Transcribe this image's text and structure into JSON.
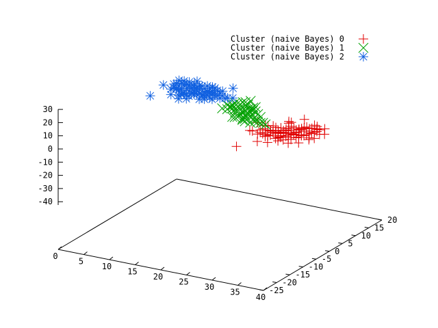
{
  "chart_data": {
    "type": "scatter",
    "projection": "3d",
    "title": "",
    "xlabel": "",
    "ylabel": "",
    "zlabel": "",
    "x_ticks": [
      "0",
      "5",
      "10",
      "15",
      "20",
      "25",
      "30",
      "35",
      "40"
    ],
    "y_ticks": [
      "-25",
      "-20",
      "-15",
      "-10",
      "-5",
      "0",
      "5",
      "10",
      "15",
      "20"
    ],
    "z_ticks": [
      "30",
      "20",
      "10",
      "0",
      "-10",
      "-20",
      "-30",
      "-40"
    ],
    "xlim": [
      0,
      40
    ],
    "ylim": [
      -25,
      20
    ],
    "zlim": [
      -40,
      30
    ],
    "grid": false,
    "legend_position": "top-right",
    "series": [
      {
        "name": "Cluster (naive Bayes) 0",
        "marker": "plus",
        "color": "#e00000",
        "points": [
          [
            24,
            2,
            0.24
          ],
          [
            25,
            2,
            -1.3
          ],
          [
            25,
            3,
            -1.2
          ],
          [
            25,
            4,
            0.29
          ],
          [
            25,
            5,
            1.6
          ],
          [
            25,
            6,
            0.38
          ],
          [
            26,
            2,
            -0.26
          ],
          [
            26,
            3,
            -0.37
          ],
          [
            26,
            4,
            0.13
          ],
          [
            26,
            5,
            -1.67
          ],
          [
            26,
            6,
            0.91
          ],
          [
            27,
            1,
            1.14
          ],
          [
            27,
            2,
            -1.04
          ],
          [
            27,
            3,
            1.4
          ],
          [
            27,
            4,
            -0.77
          ],
          [
            27,
            5,
            -2.8
          ],
          [
            27,
            6,
            -1.62
          ],
          [
            27,
            7,
            -0.93
          ],
          [
            28,
            1,
            1.38
          ],
          [
            28,
            2,
            2.24
          ],
          [
            28,
            3,
            2.1
          ],
          [
            28,
            4,
            -0.42
          ],
          [
            28,
            5,
            -1.24
          ],
          [
            28,
            6,
            -1.06
          ],
          [
            28,
            7,
            -1.11
          ],
          [
            28,
            8,
            2.12
          ],
          [
            29,
            1,
            -0.36
          ],
          [
            29,
            2,
            -0.16
          ],
          [
            29,
            3,
            -0.52
          ],
          [
            29,
            4,
            0.96
          ],
          [
            29,
            5,
            0.8
          ],
          [
            29,
            6,
            1.6
          ],
          [
            29,
            7,
            -3.65
          ],
          [
            29,
            8,
            -0.53
          ],
          [
            30,
            1,
            1.26
          ],
          [
            30,
            2,
            -1.8
          ],
          [
            30,
            3,
            -0.29
          ],
          [
            30,
            4,
            -0.59
          ],
          [
            30,
            5,
            -1.46
          ],
          [
            30,
            6,
            -1.14
          ],
          [
            30,
            7,
            -0.3
          ],
          [
            30,
            8,
            -0.88
          ],
          [
            30,
            9,
            -1.44
          ],
          [
            31,
            2,
            0.75
          ],
          [
            31,
            3,
            -1.93
          ],
          [
            31,
            4,
            0.34
          ],
          [
            31,
            5,
            0.8
          ],
          [
            31,
            6,
            1.94
          ],
          [
            31,
            7,
            0.9
          ],
          [
            31,
            8,
            1.04
          ],
          [
            31,
            9,
            0.43
          ],
          [
            31,
            10,
            -2.09
          ],
          [
            32,
            3,
            0.18
          ],
          [
            32,
            4,
            -0.47
          ],
          [
            32,
            5,
            -0.46
          ],
          [
            32,
            6,
            1.6
          ],
          [
            32,
            7,
            -2.19
          ],
          [
            32,
            8,
            -0.69
          ],
          [
            32,
            9,
            0.21
          ],
          [
            32,
            10,
            1.35
          ],
          [
            32,
            11,
            -0.8
          ],
          [
            33,
            5,
            0.9
          ],
          [
            33,
            6,
            1.13
          ],
          [
            33,
            7,
            -0.6
          ],
          [
            33,
            8,
            -0.9
          ],
          [
            33,
            9,
            0.72
          ],
          [
            33,
            10,
            -1.36
          ],
          [
            34,
            6,
            -2.28
          ],
          [
            34,
            7,
            1.67
          ],
          [
            34,
            8,
            -1.66
          ],
          [
            35,
            2,
            2.22
          ],
          [
            33,
            6,
            -2.73
          ],
          [
            32,
            5,
            -0.62
          ],
          [
            30,
            0,
            -0.16
          ],
          [
            29,
            12,
            1.08
          ],
          [
            31,
            4,
            0.82
          ],
          [
            23,
            6,
            1.2
          ],
          [
            31,
            6,
            -1.98
          ],
          [
            29,
            4,
            -0.13
          ],
          [
            25,
            -6,
            -1.17
          ],
          [
            24,
            1,
            1.89
          ],
          [
            27,
            10,
            0.34
          ],
          [
            34,
            10,
            0.16
          ],
          [
            28,
            9,
            -1.44
          ],
          [
            32,
            0,
            -0.35
          ],
          [
            28,
            9,
            1.61
          ],
          [
            26,
            7,
            -1.47
          ],
          [
            33,
            9,
            0.21
          ],
          [
            30,
            0,
            2.06
          ],
          [
            27,
            1,
            -0.38
          ],
          [
            36,
            6,
            2.4
          ],
          [
            29,
            4,
            0.42
          ],
          [
            29,
            6,
            0.03
          ],
          [
            30,
            7,
            -1.7
          ],
          [
            25,
            3,
            0.62
          ],
          [
            33,
            4,
            1.42
          ],
          [
            26,
            5,
            -1.51
          ],
          [
            30,
            8,
            -1.19
          ],
          [
            27,
            -2,
            -0.58
          ],
          [
            31,
            3,
            1.51
          ],
          [
            29,
            -2,
            0.21
          ],
          [
            33,
            2,
            -1.76
          ]
        ]
      },
      {
        "name": "Cluster (naive Bayes) 1",
        "marker": "cross",
        "color": "#00a000",
        "points": [
          [
            14,
            10,
            0.2
          ],
          [
            14,
            12,
            0.18
          ],
          [
            14,
            14,
            -1.78
          ],
          [
            15,
            10,
            0.31
          ],
          [
            15,
            11,
            0.93
          ],
          [
            15,
            12,
            0.46
          ],
          [
            15,
            13,
            1.46
          ],
          [
            15,
            14,
            0.09
          ],
          [
            16,
            10,
            1.71
          ],
          [
            16,
            11,
            -0.22
          ],
          [
            16,
            12,
            0.44
          ],
          [
            16,
            13,
            1.35
          ],
          [
            16,
            14,
            1.62
          ],
          [
            16,
            15,
            0.47
          ],
          [
            17,
            8,
            -1.61
          ],
          [
            17,
            9,
            0.42
          ],
          [
            17,
            10,
            1.38
          ],
          [
            17,
            11,
            0.53
          ],
          [
            17,
            12,
            -1.5
          ],
          [
            17,
            13,
            1.24
          ],
          [
            17,
            14,
            0.53
          ],
          [
            17,
            15,
            2.22
          ],
          [
            18,
            7,
            0.2
          ],
          [
            18,
            8,
            -0.82
          ],
          [
            18,
            9,
            -0.27
          ],
          [
            18,
            10,
            0.03
          ],
          [
            18,
            11,
            0.23
          ],
          [
            18,
            12,
            0.02
          ],
          [
            18,
            13,
            -1.01
          ],
          [
            18,
            14,
            -0.9
          ],
          [
            19,
            8,
            -1.38
          ],
          [
            19,
            9,
            0.37
          ],
          [
            19,
            10,
            0.05
          ],
          [
            19,
            11,
            0.28
          ],
          [
            19,
            12,
            0.09
          ],
          [
            19,
            13,
            1.43
          ],
          [
            20,
            7,
            0.58
          ],
          [
            20,
            8,
            -0.57
          ],
          [
            20,
            9,
            0.23
          ],
          [
            20,
            10,
            -0.6
          ],
          [
            20,
            11,
            1.3
          ],
          [
            21,
            5,
            1.76
          ],
          [
            21,
            7,
            -1.6
          ],
          [
            21,
            8,
            -0.8
          ],
          [
            21,
            9,
            -1.55
          ],
          [
            21,
            10,
            1.23
          ],
          [
            22,
            7,
            0.21
          ],
          [
            22,
            8,
            -1.29
          ],
          [
            22,
            9,
            1.02
          ],
          [
            23,
            7,
            -0.35
          ],
          [
            23,
            8,
            -1.46
          ],
          [
            24,
            7,
            -0.66
          ],
          [
            20,
            6,
            0.8
          ],
          [
            18,
            11,
            0.5
          ]
        ]
      },
      {
        "name": "Cluster (naive Bayes) 2",
        "marker": "star",
        "color": "#1060e0",
        "points": [
          [
            0,
            15,
            1.08
          ],
          [
            1,
            17,
            0.23
          ],
          [
            1,
            18,
            -0.79
          ],
          [
            2,
            14,
            0.71
          ],
          [
            2,
            15,
            0.76
          ],
          [
            2,
            16,
            -1.03
          ],
          [
            2,
            17,
            -0.4
          ],
          [
            2,
            18,
            0.5
          ],
          [
            3,
            14,
            1.58
          ],
          [
            3,
            15,
            -0.59
          ],
          [
            3,
            16,
            -0.55
          ],
          [
            3,
            17,
            1.49
          ],
          [
            3,
            18,
            0.05
          ],
          [
            3,
            19,
            0.89
          ],
          [
            4,
            13,
            -1.4
          ],
          [
            4,
            14,
            1.48
          ],
          [
            4,
            15,
            -1.79
          ],
          [
            4,
            16,
            0.24
          ],
          [
            4,
            17,
            1.81
          ],
          [
            4,
            18,
            -1.47
          ],
          [
            4,
            19,
            0.38
          ],
          [
            5,
            12,
            1.13
          ],
          [
            5,
            13,
            0.93
          ],
          [
            5,
            14,
            -1.57
          ],
          [
            5,
            15,
            0.59
          ],
          [
            5,
            16,
            1.09
          ],
          [
            5,
            17,
            1.91
          ],
          [
            5,
            18,
            -0.23
          ],
          [
            5,
            19,
            -0.26
          ],
          [
            6,
            12,
            -1.16
          ],
          [
            6,
            13,
            -0.37
          ],
          [
            6,
            14,
            0.45
          ],
          [
            6,
            15,
            0.63
          ],
          [
            6,
            16,
            0.68
          ],
          [
            6,
            17,
            0.13
          ],
          [
            6,
            18,
            1.36
          ],
          [
            6,
            19,
            -1.59
          ],
          [
            6,
            20,
            -0.92
          ],
          [
            7,
            13,
            1.81
          ],
          [
            7,
            14,
            0.81
          ],
          [
            7,
            15,
            -0.13
          ],
          [
            7,
            16,
            -1.8
          ],
          [
            7,
            17,
            -1.26
          ],
          [
            7,
            18,
            -1.67
          ],
          [
            7,
            19,
            -0.84
          ],
          [
            7,
            20,
            -0.96
          ],
          [
            8,
            13,
            -1.14
          ],
          [
            8,
            14,
            0.07
          ],
          [
            8,
            15,
            -1.34
          ],
          [
            8,
            16,
            1.02
          ],
          [
            8,
            17,
            -1.17
          ],
          [
            8,
            18,
            -1.32
          ],
          [
            8,
            19,
            0.22
          ],
          [
            9,
            13,
            -0.32
          ],
          [
            9,
            14,
            1.49
          ],
          [
            9,
            15,
            -1.5
          ],
          [
            9,
            16,
            0.2
          ],
          [
            9,
            17,
            0.73
          ],
          [
            9,
            18,
            0.47
          ],
          [
            10,
            14,
            -0.8
          ],
          [
            10,
            15,
            1.0
          ],
          [
            10,
            16,
            -0.3
          ],
          [
            10,
            17,
            0.1
          ],
          [
            10,
            18,
            0.6
          ],
          [
            11,
            15,
            -0.4
          ],
          [
            11,
            16,
            0.2
          ],
          [
            12,
            15,
            0.3
          ],
          [
            12,
            16,
            -0.6
          ],
          [
            13,
            16,
            0.1
          ],
          [
            11,
            20,
            1.2
          ],
          [
            6,
            14,
            0.8
          ],
          [
            3,
            12,
            -0.3
          ],
          [
            2,
            19,
            0.9
          ],
          [
            4,
            20,
            1.1
          ],
          [
            5,
            11,
            -0.8
          ],
          [
            0,
            10,
            -1.2
          ],
          [
            1,
            19,
            0.6
          ]
        ]
      }
    ]
  }
}
